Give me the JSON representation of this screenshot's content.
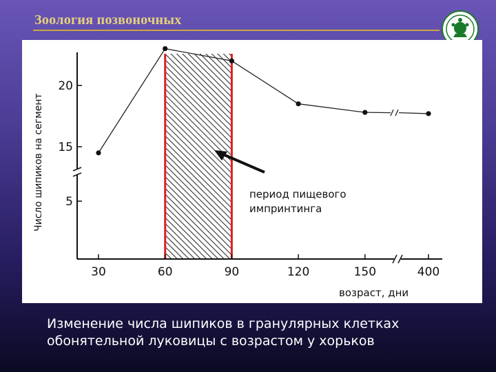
{
  "slide": {
    "title": "Зоология позвоночных",
    "caption_line1": "Изменение числа шипиков в гранулярных клетках",
    "caption_line2": "обонятельной луковицы с возрастом у хорьков",
    "logo": "university-seal-icon",
    "title_color": "#e6d27a",
    "highlight_color": "#e02020"
  },
  "chart_data": {
    "type": "line",
    "ylabel": "Число шипиков на сегмент",
    "xlabel": "возраст, дни",
    "x_ticks": [
      "30",
      "60",
      "90",
      "120",
      "150",
      "400"
    ],
    "y_ticks": [
      "5",
      "15",
      "20"
    ],
    "y_axis_break": true,
    "x_axis_break_between": [
      "150",
      "400"
    ],
    "series": [
      {
        "x": [
          30,
          60,
          90,
          120,
          150,
          400
        ],
        "y": [
          14.5,
          23.0,
          22.0,
          18.5,
          17.8,
          17.7
        ]
      }
    ],
    "shaded_region": {
      "x_start": 60,
      "x_end": 90
    },
    "annotation": {
      "line1": "период пищевого",
      "line2": "импринтинга"
    }
  }
}
